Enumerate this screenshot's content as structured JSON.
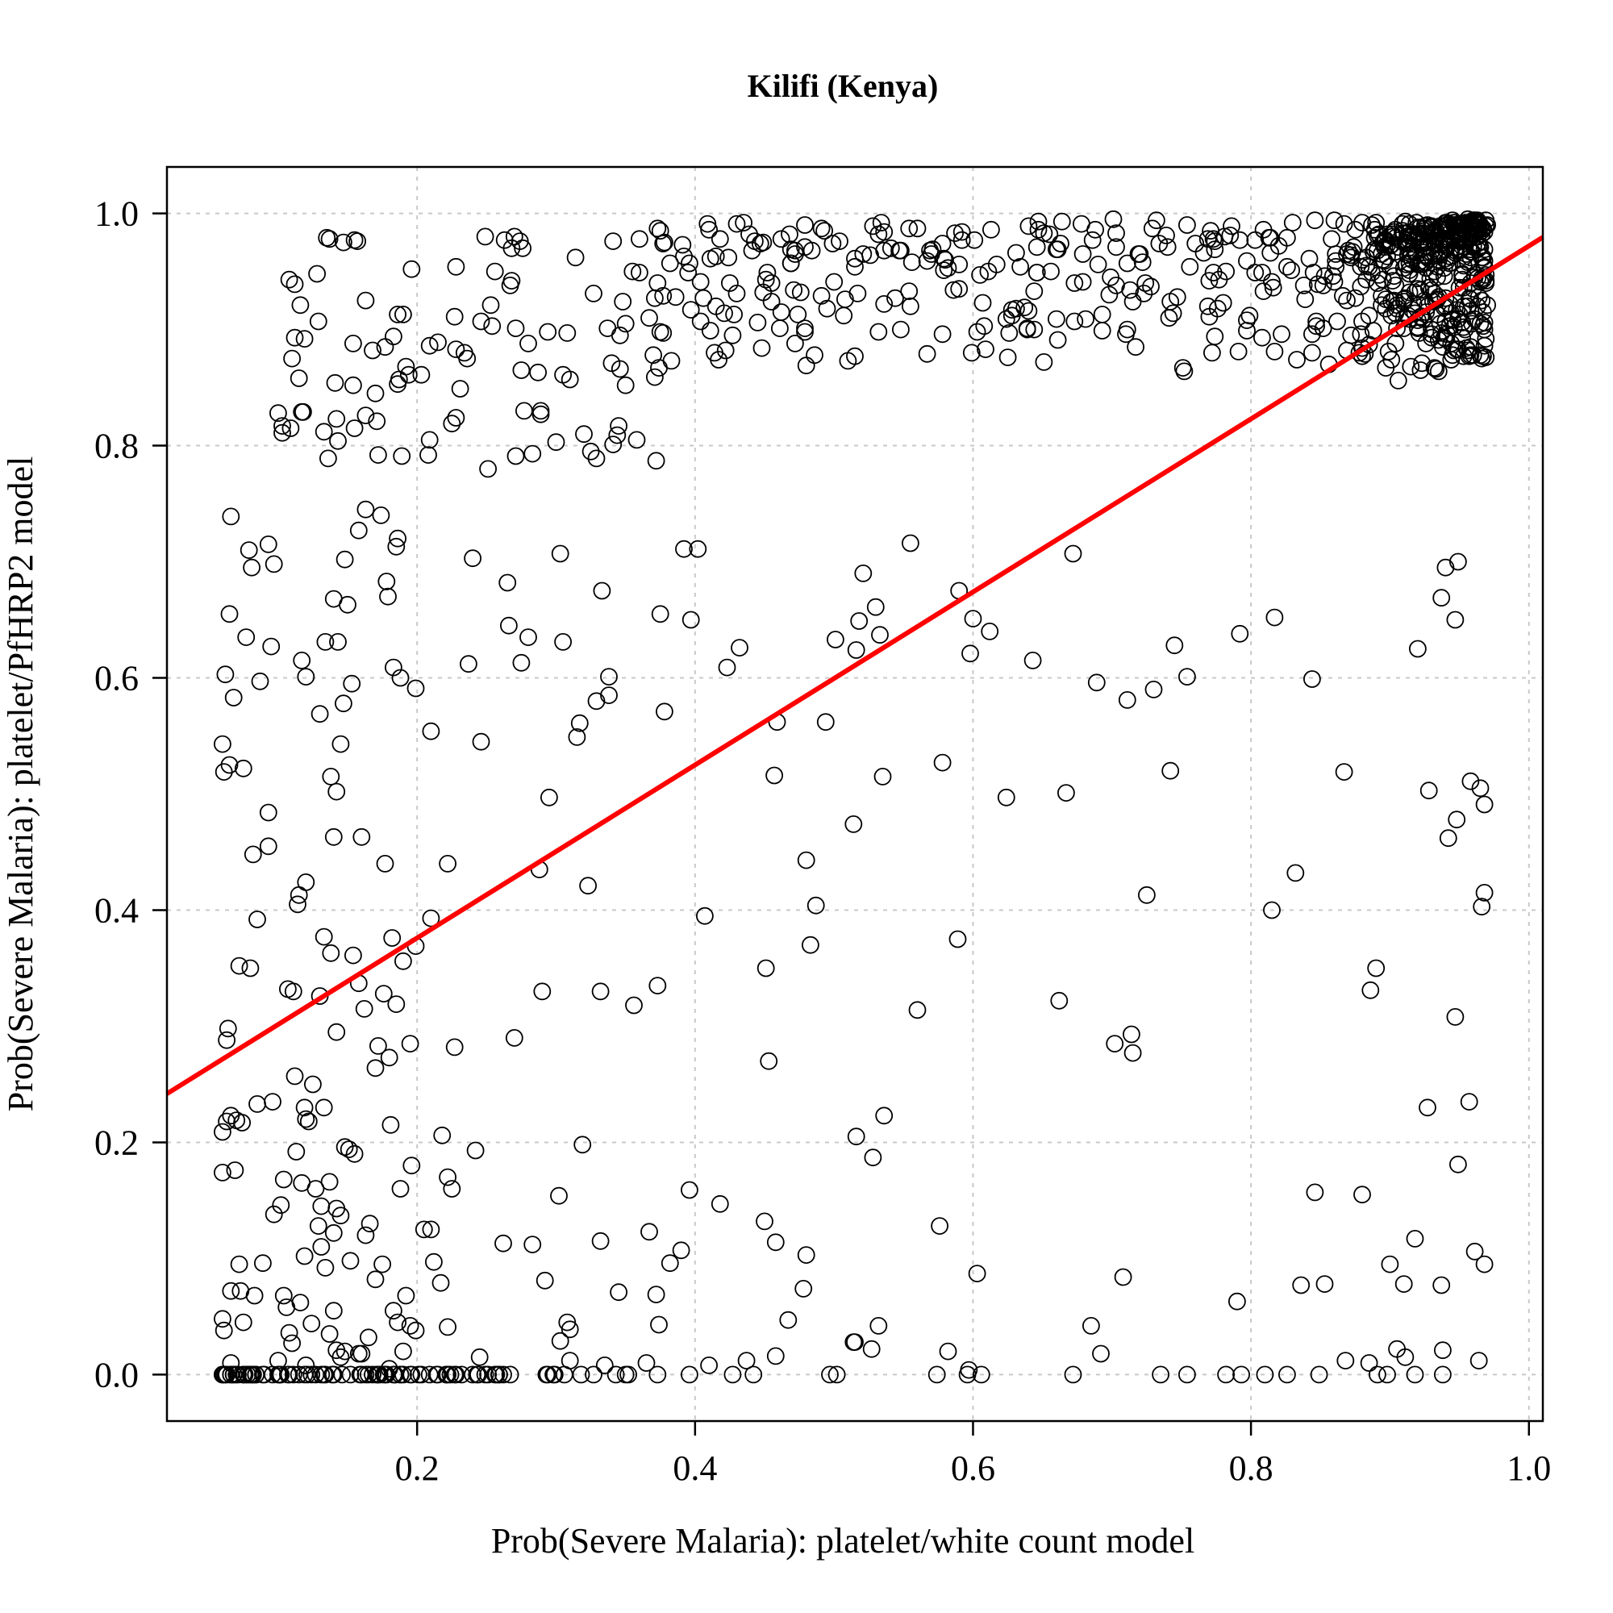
{
  "chart_data": {
    "type": "scatter",
    "title": "Kilifi (Kenya)",
    "xlabel": "Prob(Severe Malaria): platelet/white count model",
    "ylabel": "Prob(Severe Malaria): platelet/PfHRP2 model",
    "xlim": [
      0.02,
      1.01
    ],
    "ylim": [
      -0.04,
      1.04
    ],
    "x_ticks": [
      {
        "value": 0.2,
        "label": "0.2"
      },
      {
        "value": 0.4,
        "label": "0.4"
      },
      {
        "value": 0.6,
        "label": "0.6"
      },
      {
        "value": 0.8,
        "label": "0.8"
      },
      {
        "value": 1.0,
        "label": "1.0"
      }
    ],
    "y_ticks": [
      {
        "value": 0.0,
        "label": "0.0"
      },
      {
        "value": 0.2,
        "label": "0.2"
      },
      {
        "value": 0.4,
        "label": "0.4"
      },
      {
        "value": 0.6,
        "label": "0.6"
      },
      {
        "value": 0.8,
        "label": "0.8"
      },
      {
        "value": 1.0,
        "label": "1.0"
      }
    ],
    "grid": true,
    "point_marker": "open-circle",
    "fit_line": {
      "intercept": 0.227,
      "slope": 0.745,
      "color": "#ff0000"
    },
    "points": [
      [
        0.063,
        0.0
      ],
      [
        0.068,
        0.0
      ],
      [
        0.071,
        0.0
      ],
      [
        0.078,
        0.0
      ],
      [
        0.084,
        0.0
      ],
      [
        0.09,
        0.0
      ],
      [
        0.096,
        0.0
      ],
      [
        0.102,
        0.0
      ],
      [
        0.108,
        0.0
      ],
      [
        0.115,
        0.0
      ],
      [
        0.121,
        0.0
      ],
      [
        0.127,
        0.0
      ],
      [
        0.134,
        0.0
      ],
      [
        0.14,
        0.0
      ],
      [
        0.146,
        0.0
      ],
      [
        0.152,
        0.0
      ],
      [
        0.159,
        0.0
      ],
      [
        0.165,
        0.0
      ],
      [
        0.171,
        0.0
      ],
      [
        0.178,
        0.0
      ],
      [
        0.184,
        0.0
      ],
      [
        0.19,
        0.0
      ],
      [
        0.196,
        0.0
      ],
      [
        0.203,
        0.0
      ],
      [
        0.209,
        0.0
      ],
      [
        0.215,
        0.0
      ],
      [
        0.222,
        0.0
      ],
      [
        0.228,
        0.0
      ],
      [
        0.24,
        0.0
      ],
      [
        0.256,
        0.0
      ],
      [
        0.267,
        0.0
      ],
      [
        0.294,
        0.0
      ],
      [
        0.306,
        0.0
      ],
      [
        0.318,
        0.0
      ],
      [
        0.327,
        0.0
      ],
      [
        0.343,
        0.0
      ],
      [
        0.35,
        0.0
      ],
      [
        0.352,
        0.0
      ],
      [
        0.373,
        0.0
      ],
      [
        0.396,
        0.0
      ],
      [
        0.427,
        0.0
      ],
      [
        0.442,
        0.0
      ],
      [
        0.497,
        0.0
      ],
      [
        0.502,
        0.0
      ],
      [
        0.574,
        0.0
      ],
      [
        0.596,
        0.0
      ],
      [
        0.606,
        0.0
      ],
      [
        0.672,
        0.0
      ],
      [
        0.735,
        0.0
      ],
      [
        0.754,
        0.0
      ],
      [
        0.782,
        0.0
      ],
      [
        0.793,
        0.0
      ],
      [
        0.81,
        0.0
      ],
      [
        0.826,
        0.0
      ],
      [
        0.849,
        0.0
      ],
      [
        0.891,
        0.0
      ],
      [
        0.898,
        0.0
      ],
      [
        0.918,
        0.0
      ],
      [
        0.938,
        0.0
      ],
      [
        0.066,
        0.01
      ],
      [
        0.1,
        0.012
      ],
      [
        0.12,
        0.008
      ],
      [
        0.145,
        0.015
      ],
      [
        0.16,
        0.018
      ],
      [
        0.19,
        0.02
      ],
      [
        0.245,
        0.015
      ],
      [
        0.31,
        0.012
      ],
      [
        0.335,
        0.008
      ],
      [
        0.365,
        0.01
      ],
      [
        0.41,
        0.008
      ],
      [
        0.437,
        0.012
      ],
      [
        0.458,
        0.016
      ],
      [
        0.515,
        0.028
      ],
      [
        0.527,
        0.022
      ],
      [
        0.582,
        0.02
      ],
      [
        0.597,
        0.004
      ],
      [
        0.692,
        0.018
      ],
      [
        0.868,
        0.012
      ],
      [
        0.885,
        0.01
      ],
      [
        0.905,
        0.022
      ],
      [
        0.911,
        0.015
      ],
      [
        0.938,
        0.021
      ],
      [
        0.964,
        0.012
      ],
      [
        0.06,
        0.048
      ],
      [
        0.061,
        0.038
      ],
      [
        0.066,
        0.072
      ],
      [
        0.072,
        0.095
      ],
      [
        0.073,
        0.072
      ],
      [
        0.075,
        0.045
      ],
      [
        0.083,
        0.068
      ],
      [
        0.089,
        0.096
      ],
      [
        0.104,
        0.068
      ],
      [
        0.106,
        0.058
      ],
      [
        0.108,
        0.036
      ],
      [
        0.11,
        0.027
      ],
      [
        0.116,
        0.062
      ],
      [
        0.119,
        0.102
      ],
      [
        0.124,
        0.044
      ],
      [
        0.131,
        0.11
      ],
      [
        0.134,
        0.092
      ],
      [
        0.137,
        0.035
      ],
      [
        0.14,
        0.055
      ],
      [
        0.142,
        0.021
      ],
      [
        0.148,
        0.02
      ],
      [
        0.152,
        0.098
      ],
      [
        0.158,
        0.018
      ],
      [
        0.163,
        0.12
      ],
      [
        0.165,
        0.032
      ],
      [
        0.17,
        0.082
      ],
      [
        0.175,
        0.095
      ],
      [
        0.18,
        0.005
      ],
      [
        0.183,
        0.055
      ],
      [
        0.186,
        0.045
      ],
      [
        0.192,
        0.068
      ],
      [
        0.195,
        0.042
      ],
      [
        0.199,
        0.038
      ],
      [
        0.205,
        0.125
      ],
      [
        0.21,
        0.125
      ],
      [
        0.212,
        0.097
      ],
      [
        0.217,
        0.079
      ],
      [
        0.222,
        0.041
      ],
      [
        0.262,
        0.113
      ],
      [
        0.283,
        0.112
      ],
      [
        0.292,
        0.081
      ],
      [
        0.303,
        0.029
      ],
      [
        0.308,
        0.045
      ],
      [
        0.31,
        0.039
      ],
      [
        0.332,
        0.115
      ],
      [
        0.345,
        0.071
      ],
      [
        0.367,
        0.123
      ],
      [
        0.372,
        0.069
      ],
      [
        0.374,
        0.043
      ],
      [
        0.382,
        0.096
      ],
      [
        0.39,
        0.107
      ],
      [
        0.45,
        0.132
      ],
      [
        0.458,
        0.114
      ],
      [
        0.467,
        0.047
      ],
      [
        0.478,
        0.074
      ],
      [
        0.48,
        0.103
      ],
      [
        0.514,
        0.028
      ],
      [
        0.532,
        0.042
      ],
      [
        0.576,
        0.128
      ],
      [
        0.603,
        0.087
      ],
      [
        0.685,
        0.042
      ],
      [
        0.708,
        0.084
      ],
      [
        0.79,
        0.063
      ],
      [
        0.836,
        0.077
      ],
      [
        0.853,
        0.078
      ],
      [
        0.9,
        0.095
      ],
      [
        0.91,
        0.078
      ],
      [
        0.918,
        0.117
      ],
      [
        0.937,
        0.077
      ],
      [
        0.961,
        0.106
      ],
      [
        0.968,
        0.095
      ],
      [
        0.06,
        0.174
      ],
      [
        0.06,
        0.209
      ],
      [
        0.063,
        0.218
      ],
      [
        0.066,
        0.223
      ],
      [
        0.069,
        0.176
      ],
      [
        0.07,
        0.219
      ],
      [
        0.074,
        0.217
      ],
      [
        0.085,
        0.233
      ],
      [
        0.097,
        0.138
      ],
      [
        0.102,
        0.146
      ],
      [
        0.104,
        0.168
      ],
      [
        0.112,
        0.257
      ],
      [
        0.113,
        0.192
      ],
      [
        0.117,
        0.165
      ],
      [
        0.119,
        0.23
      ],
      [
        0.12,
        0.22
      ],
      [
        0.122,
        0.218
      ],
      [
        0.125,
        0.25
      ],
      [
        0.127,
        0.16
      ],
      [
        0.129,
        0.128
      ],
      [
        0.131,
        0.145
      ],
      [
        0.133,
        0.23
      ],
      [
        0.137,
        0.166
      ],
      [
        0.14,
        0.122
      ],
      [
        0.142,
        0.143
      ],
      [
        0.145,
        0.137
      ],
      [
        0.148,
        0.196
      ],
      [
        0.151,
        0.194
      ],
      [
        0.155,
        0.19
      ],
      [
        0.166,
        0.13
      ],
      [
        0.181,
        0.215
      ],
      [
        0.188,
        0.16
      ],
      [
        0.196,
        0.18
      ],
      [
        0.218,
        0.206
      ],
      [
        0.222,
        0.17
      ],
      [
        0.225,
        0.16
      ],
      [
        0.242,
        0.193
      ],
      [
        0.302,
        0.154
      ],
      [
        0.319,
        0.198
      ],
      [
        0.396,
        0.159
      ],
      [
        0.418,
        0.147
      ],
      [
        0.516,
        0.205
      ],
      [
        0.528,
        0.187
      ],
      [
        0.536,
        0.223
      ],
      [
        0.88,
        0.155
      ],
      [
        0.846,
        0.157
      ],
      [
        0.927,
        0.23
      ],
      [
        0.949,
        0.181
      ],
      [
        0.957,
        0.235
      ],
      [
        0.063,
        0.288
      ],
      [
        0.064,
        0.298
      ],
      [
        0.072,
        0.352
      ],
      [
        0.08,
        0.35
      ],
      [
        0.085,
        0.392
      ],
      [
        0.096,
        0.235
      ],
      [
        0.107,
        0.332
      ],
      [
        0.111,
        0.33
      ],
      [
        0.114,
        0.405
      ],
      [
        0.115,
        0.413
      ],
      [
        0.12,
        0.424
      ],
      [
        0.13,
        0.326
      ],
      [
        0.133,
        0.377
      ],
      [
        0.138,
        0.363
      ],
      [
        0.142,
        0.295
      ],
      [
        0.154,
        0.361
      ],
      [
        0.158,
        0.337
      ],
      [
        0.162,
        0.315
      ],
      [
        0.17,
        0.264
      ],
      [
        0.172,
        0.283
      ],
      [
        0.176,
        0.328
      ],
      [
        0.18,
        0.273
      ],
      [
        0.182,
        0.376
      ],
      [
        0.185,
        0.319
      ],
      [
        0.19,
        0.356
      ],
      [
        0.195,
        0.285
      ],
      [
        0.199,
        0.369
      ],
      [
        0.21,
        0.393
      ],
      [
        0.227,
        0.282
      ],
      [
        0.27,
        0.29
      ],
      [
        0.29,
        0.33
      ],
      [
        0.332,
        0.33
      ],
      [
        0.356,
        0.318
      ],
      [
        0.373,
        0.335
      ],
      [
        0.407,
        0.395
      ],
      [
        0.451,
        0.35
      ],
      [
        0.453,
        0.27
      ],
      [
        0.483,
        0.37
      ],
      [
        0.487,
        0.404
      ],
      [
        0.56,
        0.314
      ],
      [
        0.589,
        0.375
      ],
      [
        0.662,
        0.322
      ],
      [
        0.702,
        0.285
      ],
      [
        0.714,
        0.293
      ],
      [
        0.715,
        0.277
      ],
      [
        0.725,
        0.413
      ],
      [
        0.815,
        0.4
      ],
      [
        0.886,
        0.331
      ],
      [
        0.89,
        0.35
      ],
      [
        0.947,
        0.308
      ],
      [
        0.966,
        0.403
      ],
      [
        0.968,
        0.415
      ],
      [
        0.06,
        0.543
      ],
      [
        0.061,
        0.519
      ],
      [
        0.065,
        0.525
      ],
      [
        0.068,
        0.583
      ],
      [
        0.075,
        0.522
      ],
      [
        0.082,
        0.448
      ],
      [
        0.093,
        0.455
      ],
      [
        0.093,
        0.484
      ],
      [
        0.14,
        0.463
      ],
      [
        0.142,
        0.502
      ],
      [
        0.145,
        0.543
      ],
      [
        0.147,
        0.578
      ],
      [
        0.138,
        0.515
      ],
      [
        0.16,
        0.463
      ],
      [
        0.177,
        0.44
      ],
      [
        0.21,
        0.554
      ],
      [
        0.222,
        0.44
      ],
      [
        0.246,
        0.545
      ],
      [
        0.288,
        0.435
      ],
      [
        0.295,
        0.497
      ],
      [
        0.315,
        0.549
      ],
      [
        0.317,
        0.561
      ],
      [
        0.323,
        0.421
      ],
      [
        0.457,
        0.516
      ],
      [
        0.459,
        0.562
      ],
      [
        0.48,
        0.443
      ],
      [
        0.494,
        0.562
      ],
      [
        0.514,
        0.474
      ],
      [
        0.535,
        0.515
      ],
      [
        0.578,
        0.527
      ],
      [
        0.624,
        0.497
      ],
      [
        0.667,
        0.501
      ],
      [
        0.711,
        0.581
      ],
      [
        0.742,
        0.52
      ],
      [
        0.832,
        0.432
      ],
      [
        0.867,
        0.519
      ],
      [
        0.928,
        0.503
      ],
      [
        0.942,
        0.462
      ],
      [
        0.948,
        0.478
      ],
      [
        0.958,
        0.511
      ],
      [
        0.965,
        0.505
      ],
      [
        0.968,
        0.491
      ],
      [
        0.062,
        0.603
      ],
      [
        0.065,
        0.655
      ],
      [
        0.066,
        0.739
      ],
      [
        0.077,
        0.635
      ],
      [
        0.079,
        0.71
      ],
      [
        0.081,
        0.695
      ],
      [
        0.087,
        0.597
      ],
      [
        0.093,
        0.715
      ],
      [
        0.095,
        0.627
      ],
      [
        0.097,
        0.698
      ],
      [
        0.117,
        0.615
      ],
      [
        0.12,
        0.601
      ],
      [
        0.13,
        0.569
      ],
      [
        0.134,
        0.631
      ],
      [
        0.14,
        0.668
      ],
      [
        0.143,
        0.631
      ],
      [
        0.148,
        0.702
      ],
      [
        0.15,
        0.663
      ],
      [
        0.153,
        0.595
      ],
      [
        0.158,
        0.727
      ],
      [
        0.163,
        0.745
      ],
      [
        0.174,
        0.74
      ],
      [
        0.178,
        0.683
      ],
      [
        0.179,
        0.67
      ],
      [
        0.183,
        0.609
      ],
      [
        0.185,
        0.713
      ],
      [
        0.186,
        0.72
      ],
      [
        0.188,
        0.6
      ],
      [
        0.199,
        0.591
      ],
      [
        0.237,
        0.612
      ],
      [
        0.24,
        0.703
      ],
      [
        0.265,
        0.682
      ],
      [
        0.266,
        0.645
      ],
      [
        0.275,
        0.613
      ],
      [
        0.28,
        0.635
      ],
      [
        0.303,
        0.707
      ],
      [
        0.305,
        0.631
      ],
      [
        0.329,
        0.58
      ],
      [
        0.333,
        0.675
      ],
      [
        0.338,
        0.585
      ],
      [
        0.338,
        0.601
      ],
      [
        0.375,
        0.655
      ],
      [
        0.378,
        0.571
      ],
      [
        0.397,
        0.65
      ],
      [
        0.392,
        0.711
      ],
      [
        0.402,
        0.711
      ],
      [
        0.423,
        0.609
      ],
      [
        0.432,
        0.626
      ],
      [
        0.501,
        0.633
      ],
      [
        0.516,
        0.624
      ],
      [
        0.518,
        0.649
      ],
      [
        0.521,
        0.69
      ],
      [
        0.53,
        0.661
      ],
      [
        0.533,
        0.637
      ],
      [
        0.555,
        0.716
      ],
      [
        0.59,
        0.675
      ],
      [
        0.598,
        0.621
      ],
      [
        0.6,
        0.651
      ],
      [
        0.612,
        0.64
      ],
      [
        0.643,
        0.615
      ],
      [
        0.672,
        0.707
      ],
      [
        0.689,
        0.596
      ],
      [
        0.73,
        0.59
      ],
      [
        0.745,
        0.628
      ],
      [
        0.754,
        0.601
      ],
      [
        0.817,
        0.652
      ],
      [
        0.792,
        0.638
      ],
      [
        0.844,
        0.599
      ],
      [
        0.92,
        0.625
      ],
      [
        0.937,
        0.669
      ],
      [
        0.94,
        0.695
      ],
      [
        0.947,
        0.65
      ],
      [
        0.949,
        0.7
      ]
    ]
  }
}
